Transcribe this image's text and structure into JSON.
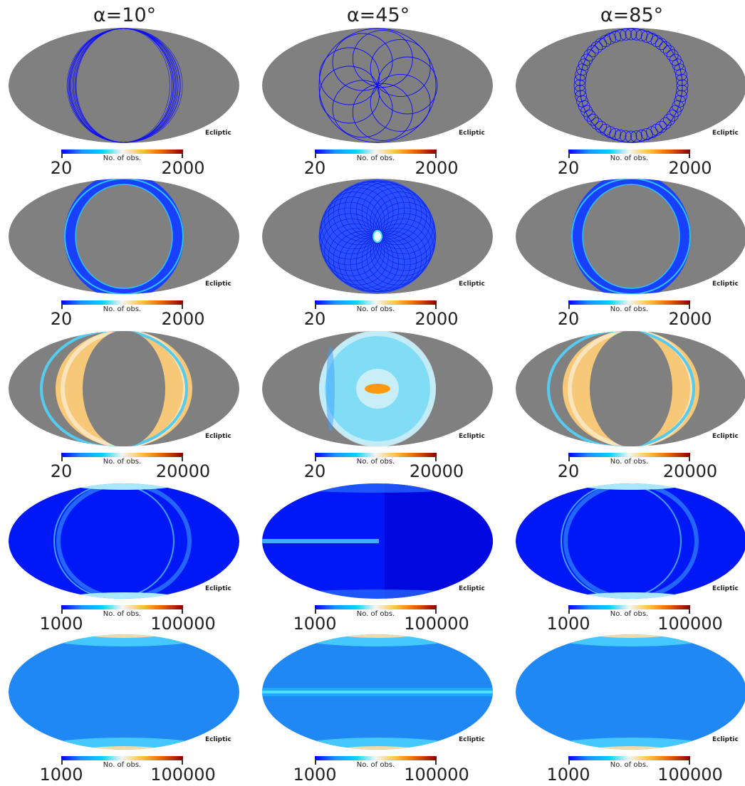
{
  "chart_data": {
    "type": "heatmap",
    "projection": "mollweide",
    "columns": [
      {
        "title": "α=10°"
      },
      {
        "title": "α=45°"
      },
      {
        "title": "α=85°"
      }
    ],
    "rows": [
      {
        "vmin": "20",
        "vmax": "2000"
      },
      {
        "vmin": "20",
        "vmax": "2000"
      },
      {
        "vmin": "20",
        "vmax": "20000"
      },
      {
        "vmin": "1000",
        "vmax": "100000"
      },
      {
        "vmin": "1000",
        "vmax": "100000"
      }
    ],
    "coord_label": "Ecliptic",
    "colorbar_label": "No. of obs.",
    "colormap": [
      "#0000ff",
      "#1e90ff",
      "#00d0ff",
      "#f5f5f0",
      "#ffc040",
      "#e06000",
      "#8b0000"
    ],
    "background_color": "#808080"
  }
}
